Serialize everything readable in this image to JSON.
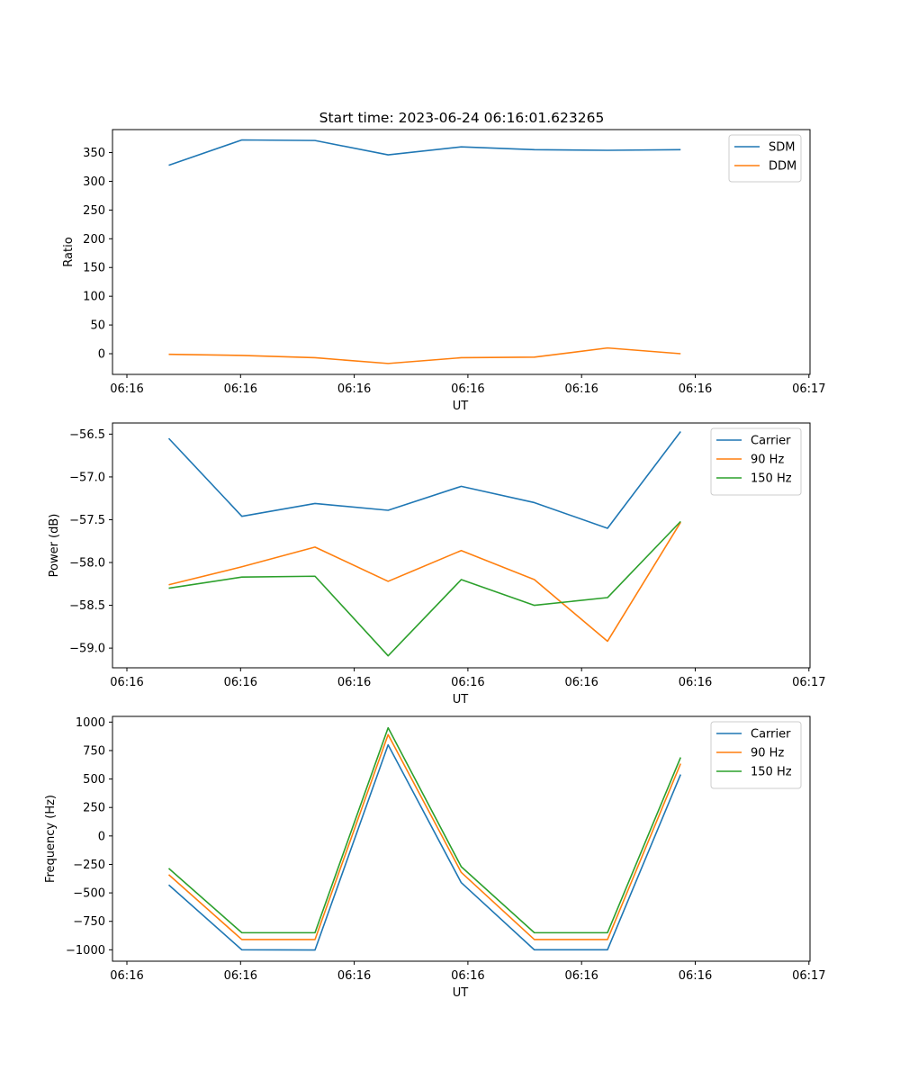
{
  "title": "Start time: 2023-06-24 06:16:01.623265",
  "chart_data": [
    {
      "type": "line",
      "xlabel": "UT",
      "ylabel": "Ratio",
      "x_tick_labels": [
        "06:16",
        "06:16",
        "06:16",
        "06:16",
        "06:16",
        "06:16",
        "06:17"
      ],
      "xlim": [
        0,
        6.2
      ],
      "x": [
        0.5,
        1.15,
        1.8,
        2.45,
        3.1,
        3.75,
        4.4,
        5.05
      ],
      "ylim": [
        -36,
        390
      ],
      "yticks": [
        0,
        50,
        100,
        150,
        200,
        250,
        300,
        350
      ],
      "legend": "top-right",
      "series": [
        {
          "name": "SDM",
          "color": "#1f77b4",
          "values": [
            328,
            372,
            371,
            346,
            360,
            355,
            354,
            355
          ]
        },
        {
          "name": "DDM",
          "color": "#ff7f0e",
          "values": [
            -1,
            -3,
            -7,
            -17,
            -7,
            -6,
            10,
            0
          ]
        }
      ]
    },
    {
      "type": "line",
      "xlabel": "UT",
      "ylabel": "Power (dB)",
      "x_tick_labels": [
        "06:16",
        "06:16",
        "06:16",
        "06:16",
        "06:16",
        "06:16",
        "06:17"
      ],
      "xlim": [
        0,
        6.2
      ],
      "x": [
        0.5,
        1.15,
        1.8,
        2.45,
        3.1,
        3.75,
        4.4,
        5.05
      ],
      "ylim": [
        -59.23,
        -56.37
      ],
      "yticks": [
        -59.0,
        -58.5,
        -58.0,
        -57.5,
        -57.0,
        -56.5
      ],
      "ytick_labels": [
        "−59.0",
        "−58.5",
        "−58.0",
        "−57.5",
        "−57.0",
        "−56.5"
      ],
      "legend": "top-right",
      "series": [
        {
          "name": "Carrier",
          "color": "#1f77b4",
          "values": [
            -56.55,
            -57.46,
            -57.31,
            -57.39,
            -57.11,
            -57.3,
            -57.6,
            -56.47
          ]
        },
        {
          "name": "90 Hz",
          "color": "#ff7f0e",
          "values": [
            -58.26,
            -58.05,
            -57.82,
            -58.22,
            -57.86,
            -58.2,
            -58.92,
            -57.53
          ]
        },
        {
          "name": "150 Hz",
          "color": "#2ca02c",
          "values": [
            -58.3,
            -58.17,
            -58.16,
            -59.09,
            -58.2,
            -58.5,
            -58.41,
            -57.52
          ]
        }
      ]
    },
    {
      "type": "line",
      "xlabel": "UT",
      "ylabel": "Frequency (Hz)",
      "x_tick_labels": [
        "06:16",
        "06:16",
        "06:16",
        "06:16",
        "06:16",
        "06:16",
        "06:17"
      ],
      "xlim": [
        0,
        6.2
      ],
      "x": [
        0.5,
        1.15,
        1.8,
        2.45,
        3.1,
        3.75,
        4.4,
        5.05
      ],
      "ylim": [
        -1100,
        1050
      ],
      "yticks": [
        -1000,
        -750,
        -500,
        -250,
        0,
        250,
        500,
        750,
        1000
      ],
      "ytick_labels": [
        "−1000",
        "−750",
        "−500",
        "−250",
        "0",
        "250",
        "500",
        "750",
        "1000"
      ],
      "legend": "top-right",
      "series": [
        {
          "name": "Carrier",
          "color": "#1f77b4",
          "values": [
            -430,
            -1000,
            -1002,
            800,
            -410,
            -1000,
            -1000,
            540
          ]
        },
        {
          "name": "90 Hz",
          "color": "#ff7f0e",
          "values": [
            -340,
            -910,
            -910,
            890,
            -320,
            -910,
            -910,
            635
          ]
        },
        {
          "name": "150 Hz",
          "color": "#2ca02c",
          "values": [
            -285,
            -850,
            -850,
            950,
            -270,
            -850,
            -850,
            690
          ]
        }
      ]
    }
  ]
}
